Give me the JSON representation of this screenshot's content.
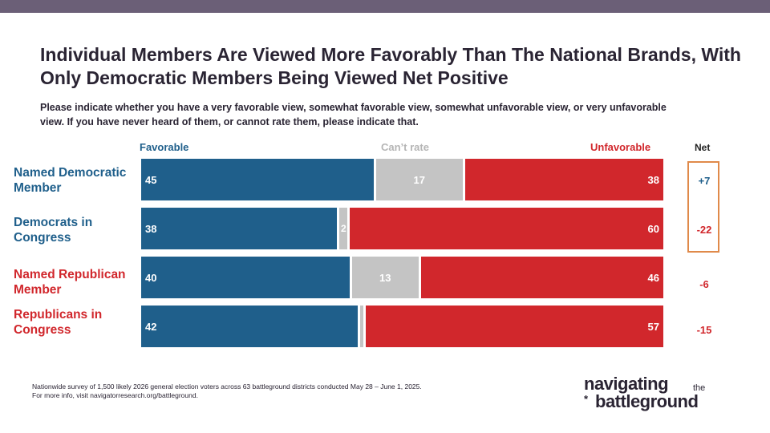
{
  "title": "Individual Members Are Viewed More Favorably Than The National Brands, With Only Democratic Members Being Viewed Net Positive",
  "subtitle": "Please indicate whether you have a very favorable view, somewhat favorable view, somewhat unfavorable view, or very unfavorable view. If you have never heard of them, or cannot rate them, please indicate that.",
  "headers": {
    "favorable": "Favorable",
    "cant_rate": "Can’t rate",
    "unfavorable": "Unfavorable",
    "net": "Net"
  },
  "colors": {
    "favorable": "#1f5f8b",
    "cant_rate": "#c4c4c4",
    "unfavorable": "#d1272c",
    "democratic_label": "#1f5f8b",
    "republican_label": "#d1272c",
    "net_highlight_border": "#e08a4a"
  },
  "chart_data": {
    "type": "bar",
    "orientation": "horizontal",
    "stacked": true,
    "title": "Individual Members Are Viewed More Favorably Than The National Brands, With Only Democratic Members Being Viewed Net Positive",
    "categories": [
      "Named Democratic Member",
      "Democrats in Congress",
      "Named Republican Member",
      "Republicans in Congress"
    ],
    "series": [
      {
        "name": "Favorable",
        "values": [
          45,
          38,
          40,
          42
        ]
      },
      {
        "name": "Can’t rate",
        "values": [
          17,
          2,
          13,
          1
        ]
      },
      {
        "name": "Unfavorable",
        "values": [
          38,
          60,
          46,
          57
        ]
      }
    ],
    "net": [
      "+7",
      "-22",
      "-6",
      "-15"
    ],
    "value_labels": [
      [
        "45",
        "17",
        "38"
      ],
      [
        "38",
        "2",
        "60"
      ],
      [
        "40",
        "13",
        "46"
      ],
      [
        "42",
        "",
        "57"
      ]
    ],
    "xlim": [
      0,
      100
    ],
    "legend": "top",
    "grid": false
  },
  "rows": [
    {
      "label": "Named Democratic Member",
      "party": "democratic"
    },
    {
      "label": "Democrats in Congress",
      "party": "democratic"
    },
    {
      "label": "Named Republican Member",
      "party": "republican"
    },
    {
      "label": "Republicans in Congress",
      "party": "republican"
    }
  ],
  "footnote": {
    "line1": "Nationwide survey of 1,500 likely 2026 general election voters across 63 battleground districts conducted May 28 – June 1, 2025.",
    "line2": "For more info, visit navigatorresearch.org/battleground."
  },
  "logo": {
    "line1": "navigating",
    "the": "the",
    "line2": "battleground",
    "star": "*"
  }
}
